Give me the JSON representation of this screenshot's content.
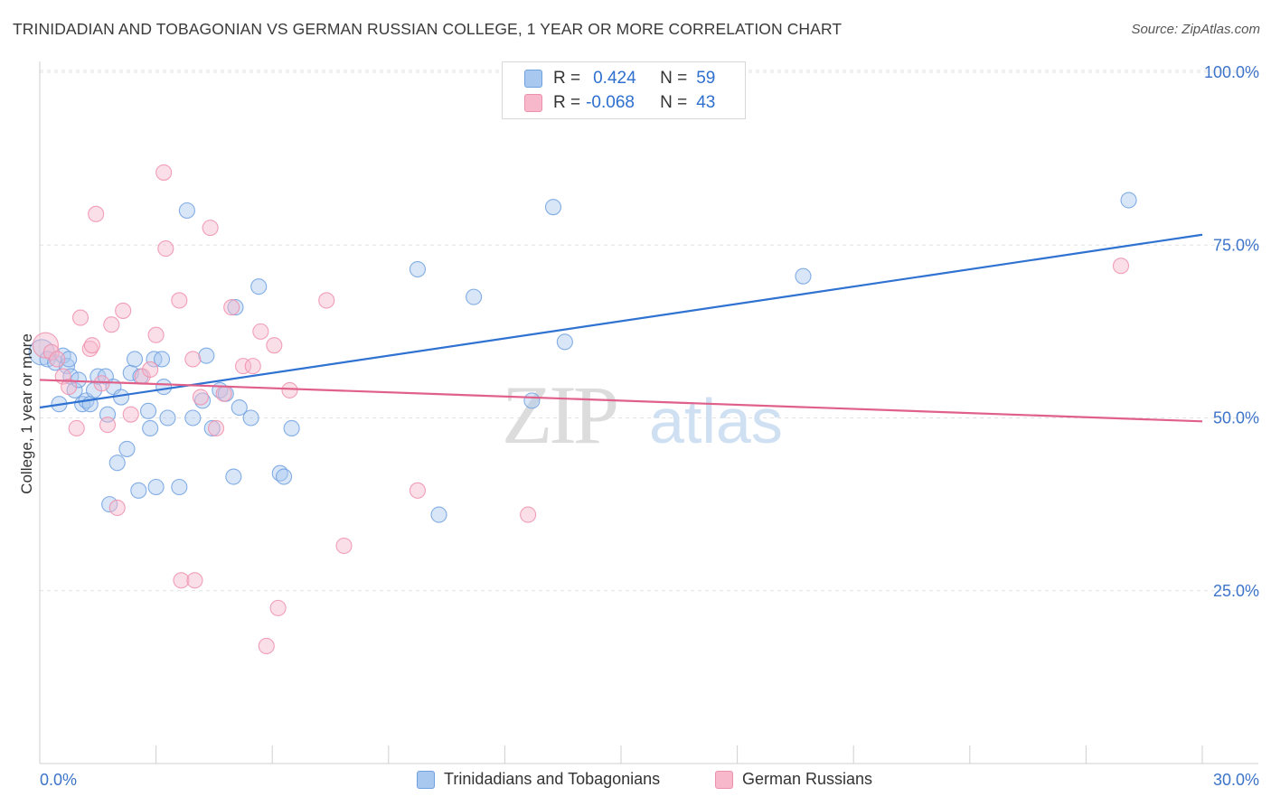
{
  "title": "TRINIDADIAN AND TOBAGONIAN VS GERMAN RUSSIAN COLLEGE, 1 YEAR OR MORE CORRELATION CHART",
  "source": "Source: ZipAtlas.com",
  "watermark": {
    "zip": "ZIP",
    "atlas": "atlas"
  },
  "legend": {
    "rows": [
      {
        "r_label": "R =",
        "r_value": "0.424",
        "n_label": "N =",
        "n_value": "59",
        "color": "#a9c8f0"
      },
      {
        "r_label": "R =",
        "r_value": "-0.068",
        "n_label": "N =",
        "n_value": "43",
        "color": "#f7b8cb"
      }
    ]
  },
  "chart_data": {
    "type": "scatter",
    "title": "TRINIDADIAN AND TOBAGONIAN VS GERMAN RUSSIAN COLLEGE, 1 YEAR OR MORE CORRELATION CHART",
    "xlabel": "",
    "ylabel": "College, 1 year or more",
    "xlim": [
      0,
      30
    ],
    "ylim": [
      0,
      105
    ],
    "x_tick_labels": [
      "0.0%",
      "30.0%"
    ],
    "y_ticks": [
      25,
      50,
      75,
      100
    ],
    "y_tick_labels": [
      "25.0%",
      "50.0%",
      "75.0%",
      "100.0%"
    ],
    "grid": true,
    "legend_position": "bottom",
    "series": [
      {
        "name": "Trinidadians and Tobagonians",
        "color": "#6fa0e0",
        "fill": "#a9c8f0",
        "line_color": "#2f72d1",
        "trend": {
          "x": [
            0,
            30
          ],
          "y": [
            51.5,
            76.5
          ]
        },
        "points": [
          {
            "x": 0.05,
            "y": 59.5,
            "big": true
          },
          {
            "x": 0.2,
            "y": 58.5
          },
          {
            "x": 0.4,
            "y": 58
          },
          {
            "x": 0.5,
            "y": 52
          },
          {
            "x": 0.6,
            "y": 59
          },
          {
            "x": 0.7,
            "y": 57.5
          },
          {
            "x": 0.75,
            "y": 58.5
          },
          {
            "x": 0.8,
            "y": 56
          },
          {
            "x": 0.9,
            "y": 54
          },
          {
            "x": 1.0,
            "y": 55.5
          },
          {
            "x": 1.1,
            "y": 52
          },
          {
            "x": 1.2,
            "y": 52.5
          },
          {
            "x": 1.3,
            "y": 52
          },
          {
            "x": 1.4,
            "y": 54
          },
          {
            "x": 1.5,
            "y": 56
          },
          {
            "x": 1.7,
            "y": 56
          },
          {
            "x": 1.75,
            "y": 50.5
          },
          {
            "x": 1.8,
            "y": 37.5
          },
          {
            "x": 1.9,
            "y": 54.5
          },
          {
            "x": 2.0,
            "y": 43.5
          },
          {
            "x": 2.1,
            "y": 53
          },
          {
            "x": 2.25,
            "y": 45.5
          },
          {
            "x": 2.35,
            "y": 56.5
          },
          {
            "x": 2.45,
            "y": 58.5
          },
          {
            "x": 2.55,
            "y": 39.5
          },
          {
            "x": 2.6,
            "y": 56
          },
          {
            "x": 2.8,
            "y": 51
          },
          {
            "x": 2.85,
            "y": 48.5
          },
          {
            "x": 2.95,
            "y": 58.5
          },
          {
            "x": 3.0,
            "y": 40
          },
          {
            "x": 3.15,
            "y": 58.5
          },
          {
            "x": 3.2,
            "y": 54.5
          },
          {
            "x": 3.3,
            "y": 50
          },
          {
            "x": 3.6,
            "y": 40
          },
          {
            "x": 3.8,
            "y": 80
          },
          {
            "x": 3.95,
            "y": 50
          },
          {
            "x": 4.2,
            "y": 52.5
          },
          {
            "x": 4.3,
            "y": 59
          },
          {
            "x": 4.45,
            "y": 48.5
          },
          {
            "x": 4.65,
            "y": 54
          },
          {
            "x": 4.8,
            "y": 53.5
          },
          {
            "x": 5.0,
            "y": 41.5
          },
          {
            "x": 5.05,
            "y": 66
          },
          {
            "x": 5.15,
            "y": 51.5
          },
          {
            "x": 5.45,
            "y": 50
          },
          {
            "x": 5.65,
            "y": 69
          },
          {
            "x": 6.2,
            "y": 42
          },
          {
            "x": 6.3,
            "y": 41.5
          },
          {
            "x": 6.5,
            "y": 48.5
          },
          {
            "x": 9.75,
            "y": 71.5
          },
          {
            "x": 10.3,
            "y": 36
          },
          {
            "x": 11.2,
            "y": 67.5
          },
          {
            "x": 12.7,
            "y": 52.5
          },
          {
            "x": 13.25,
            "y": 80.5
          },
          {
            "x": 13.55,
            "y": 61
          },
          {
            "x": 19.7,
            "y": 70.5
          },
          {
            "x": 28.1,
            "y": 81.5
          }
        ]
      },
      {
        "name": "German Russians",
        "color": "#ee8fab",
        "fill": "#f7b8cb",
        "line_color": "#e0608a",
        "trend": {
          "x": [
            0,
            30
          ],
          "y": [
            55.5,
            49.5
          ]
        },
        "points": [
          {
            "x": 0.15,
            "y": 60.5,
            "big": true
          },
          {
            "x": 0.3,
            "y": 59.5
          },
          {
            "x": 0.45,
            "y": 58.5
          },
          {
            "x": 0.6,
            "y": 56
          },
          {
            "x": 0.75,
            "y": 54.5
          },
          {
            "x": 0.95,
            "y": 48.5
          },
          {
            "x": 1.05,
            "y": 64.5
          },
          {
            "x": 1.3,
            "y": 60
          },
          {
            "x": 1.35,
            "y": 60.5
          },
          {
            "x": 1.45,
            "y": 79.5
          },
          {
            "x": 1.6,
            "y": 55
          },
          {
            "x": 1.75,
            "y": 49
          },
          {
            "x": 1.85,
            "y": 63.5
          },
          {
            "x": 2.0,
            "y": 37
          },
          {
            "x": 2.15,
            "y": 65.5
          },
          {
            "x": 2.35,
            "y": 50.5
          },
          {
            "x": 2.65,
            "y": 56
          },
          {
            "x": 2.85,
            "y": 57
          },
          {
            "x": 3.0,
            "y": 62
          },
          {
            "x": 3.2,
            "y": 85.5
          },
          {
            "x": 3.25,
            "y": 74.5
          },
          {
            "x": 3.6,
            "y": 67
          },
          {
            "x": 3.65,
            "y": 26.5
          },
          {
            "x": 3.95,
            "y": 58.5
          },
          {
            "x": 4.0,
            "y": 26.5
          },
          {
            "x": 4.15,
            "y": 53
          },
          {
            "x": 4.4,
            "y": 77.5
          },
          {
            "x": 4.55,
            "y": 48.5
          },
          {
            "x": 4.75,
            "y": 53.5
          },
          {
            "x": 4.95,
            "y": 66
          },
          {
            "x": 5.25,
            "y": 57.5
          },
          {
            "x": 5.5,
            "y": 57.5
          },
          {
            "x": 5.7,
            "y": 62.5
          },
          {
            "x": 5.85,
            "y": 17
          },
          {
            "x": 6.05,
            "y": 60.5
          },
          {
            "x": 6.15,
            "y": 22.5
          },
          {
            "x": 6.45,
            "y": 54
          },
          {
            "x": 7.4,
            "y": 67
          },
          {
            "x": 7.85,
            "y": 31.5
          },
          {
            "x": 9.75,
            "y": 39.5
          },
          {
            "x": 12.6,
            "y": 36
          },
          {
            "x": 27.9,
            "y": 72
          }
        ]
      }
    ]
  }
}
